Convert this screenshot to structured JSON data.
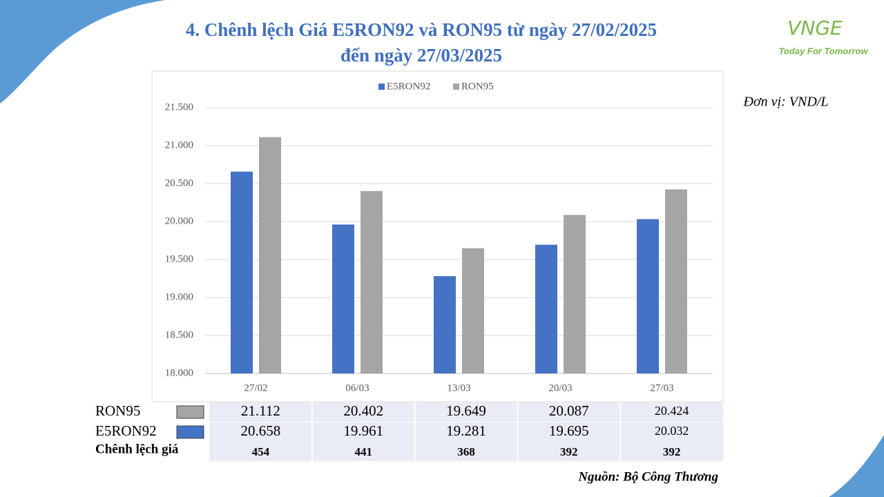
{
  "chart_data": {
    "type": "bar",
    "title": [
      "4. Chênh lệch Giá E5RON92 và RON95 từ ngày 27/02/2025",
      "đến ngày 27/03/2025"
    ],
    "unit": "Đơn vị: VND/L",
    "categories": [
      "27/02",
      "06/03",
      "13/03",
      "20/03",
      "27/03"
    ],
    "series": [
      {
        "name": "E5RON92",
        "color": "#4472c4",
        "values": [
          20658,
          19961,
          19281,
          19695,
          20032
        ],
        "value_labels": [
          "20.658",
          "19.961",
          "19.281",
          "19.695",
          "20.032"
        ]
      },
      {
        "name": "RON95",
        "color": "#a5a5a5",
        "values": [
          21112,
          20402,
          19649,
          20087,
          20424
        ],
        "value_labels": [
          "21.112",
          "20.402",
          "19.649",
          "20.087",
          "20.424"
        ]
      }
    ],
    "ylim": [
      18000,
      21500
    ],
    "yticks": [
      {
        "value": 18000,
        "label": "18.000"
      },
      {
        "value": 18500,
        "label": "18.500"
      },
      {
        "value": 19000,
        "label": "19.000"
      },
      {
        "value": 19500,
        "label": "19.500"
      },
      {
        "value": 20000,
        "label": "20.000"
      },
      {
        "value": 20500,
        "label": "20.500"
      },
      {
        "value": 21000,
        "label": "21.000"
      },
      {
        "value": 21500,
        "label": "21.500"
      }
    ],
    "grid": true,
    "legend": "top",
    "difference": {
      "label": "Chênh lệch giá",
      "values": [
        454,
        441,
        368,
        392,
        392
      ]
    },
    "source": "Nguồn: Bộ Công Thương"
  },
  "logo": {
    "mark": "VNGE",
    "slogan": "Today For Tomorrow"
  }
}
